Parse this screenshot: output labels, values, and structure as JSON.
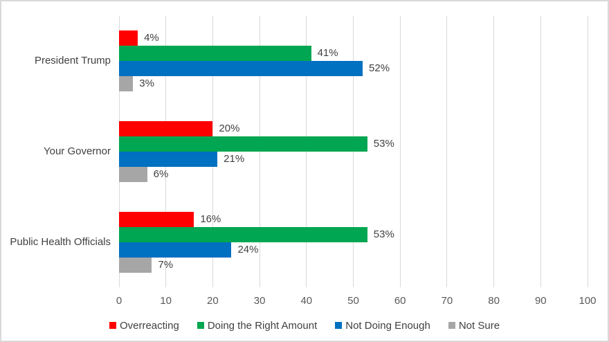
{
  "chart_data": {
    "type": "bar",
    "orientation": "horizontal",
    "title": "",
    "categories": [
      "President Trump",
      "Your Governor",
      "Public Health Officials"
    ],
    "series": [
      {
        "name": "Overreacting",
        "color": "#ff0000",
        "values": [
          4,
          20,
          16
        ]
      },
      {
        "name": "Doing the Right Amount",
        "color": "#00a651",
        "values": [
          41,
          53,
          53
        ]
      },
      {
        "name": "Not Doing Enough",
        "color": "#0070c0",
        "values": [
          52,
          21,
          24
        ]
      },
      {
        "name": "Not Sure",
        "color": "#a6a6a6",
        "values": [
          3,
          6,
          7
        ]
      }
    ],
    "data_labels": [
      [
        "4%",
        "20%",
        "16%"
      ],
      [
        "41%",
        "53%",
        "53%"
      ],
      [
        "52%",
        "21%",
        "24%"
      ],
      [
        "3%",
        "6%",
        "7%"
      ]
    ],
    "data_label_format": "{value}%",
    "x_axis": {
      "min": 0,
      "max": 100,
      "tick_interval": 10,
      "ticks": [
        "0",
        "10",
        "20",
        "30",
        "40",
        "50",
        "60",
        "70",
        "80",
        "90",
        "100"
      ]
    },
    "grid": true,
    "legend_position": "bottom",
    "legend": [
      "Overreacting",
      "Doing the Right Amount",
      "Not Doing Enough",
      "Not Sure"
    ]
  },
  "colors": {
    "background": "#ffffff",
    "chart_border": "#d9d9d9",
    "gridline": "#d9d9d9",
    "axis_text": "#595959",
    "label_text": "#404040"
  }
}
